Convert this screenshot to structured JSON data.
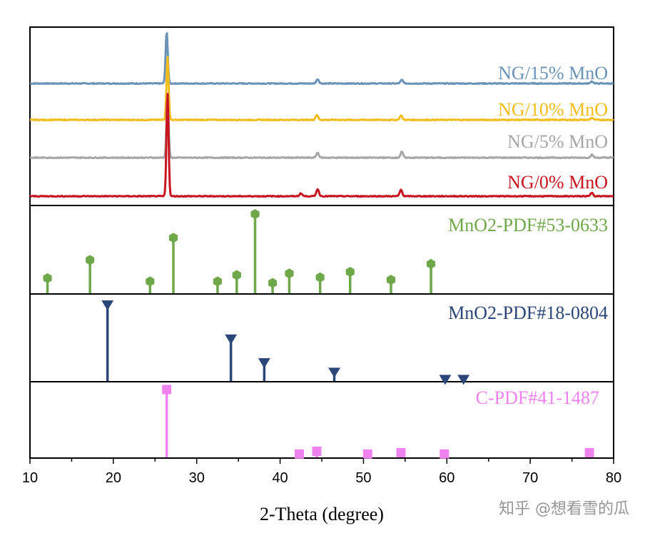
{
  "chart_data": {
    "type": "line",
    "xlabel": "2-Theta (degree)",
    "xlim": [
      10,
      80
    ],
    "x_ticks": [
      "10",
      "20",
      "30",
      "40",
      "50",
      "60",
      "70",
      "80"
    ],
    "colors": {
      "ng15": "#6a93b8",
      "ng10": "#f2bd1a",
      "ng5": "#a6a6a6",
      "ng0": "#c8141e",
      "mno2_53": "#6fa84a",
      "mno2_18": "#2b4779",
      "c_41": "#ee82ee"
    },
    "xrd_patterns": [
      {
        "key": "ng15",
        "label": "NG/15% MnO",
        "baseline": 0,
        "main_peak": {
          "x": 26.4,
          "h": 73
        },
        "minor_peaks": [
          {
            "x": 44.5,
            "h": 6
          },
          {
            "x": 54.6,
            "h": 5
          },
          {
            "x": 77.4,
            "h": 3
          }
        ]
      },
      {
        "key": "ng10",
        "label": "NG/10% MnO",
        "baseline": 0,
        "main_peak": {
          "x": 26.5,
          "h": 88
        },
        "minor_peaks": [
          {
            "x": 44.4,
            "h": 7
          },
          {
            "x": 54.5,
            "h": 6
          },
          {
            "x": 77.4,
            "h": 3
          }
        ]
      },
      {
        "key": "ng5",
        "label": "NG/5% MnO",
        "baseline": 0,
        "main_peak": {
          "x": 26.5,
          "h": 88
        },
        "minor_peaks": [
          {
            "x": 44.5,
            "h": 7
          },
          {
            "x": 54.6,
            "h": 8
          },
          {
            "x": 77.4,
            "h": 4
          }
        ]
      },
      {
        "key": "ng0",
        "label": "NG/0% MnO",
        "baseline": 0,
        "main_peak": {
          "x": 26.5,
          "h": 145
        },
        "minor_peaks": [
          {
            "x": 42.5,
            "h": 4
          },
          {
            "x": 44.5,
            "h": 10
          },
          {
            "x": 54.5,
            "h": 9
          },
          {
            "x": 77.4,
            "h": 5
          }
        ]
      }
    ],
    "reference_patterns": [
      {
        "key": "mno2_53",
        "label": "MnO2-PDF#53-0633",
        "marker": "hexagon",
        "peaks": [
          {
            "x": 12.1,
            "i": 19
          },
          {
            "x": 17.2,
            "i": 42
          },
          {
            "x": 24.4,
            "i": 15
          },
          {
            "x": 27.2,
            "i": 70
          },
          {
            "x": 32.5,
            "i": 15
          },
          {
            "x": 34.8,
            "i": 23
          },
          {
            "x": 37.0,
            "i": 100
          },
          {
            "x": 39.1,
            "i": 13
          },
          {
            "x": 41.1,
            "i": 25
          },
          {
            "x": 44.8,
            "i": 20
          },
          {
            "x": 48.4,
            "i": 27
          },
          {
            "x": 53.3,
            "i": 17
          },
          {
            "x": 58.1,
            "i": 37
          }
        ]
      },
      {
        "key": "mno2_18",
        "label": "MnO2-PDF#18-0804",
        "marker": "triangle-down",
        "peaks": [
          {
            "x": 19.3,
            "i": 100
          },
          {
            "x": 34.1,
            "i": 57
          },
          {
            "x": 38.1,
            "i": 27
          },
          {
            "x": 46.5,
            "i": 15
          },
          {
            "x": 59.8,
            "i": 6
          },
          {
            "x": 62.0,
            "i": 6
          }
        ]
      },
      {
        "key": "c_41",
        "label": "C-PDF#41-1487",
        "marker": "square",
        "peaks": [
          {
            "x": 26.4,
            "i": 100
          },
          {
            "x": 42.3,
            "i": 5
          },
          {
            "x": 44.4,
            "i": 9
          },
          {
            "x": 50.5,
            "i": 5
          },
          {
            "x": 54.5,
            "i": 7
          },
          {
            "x": 59.7,
            "i": 5
          },
          {
            "x": 77.1,
            "i": 7
          }
        ]
      }
    ]
  },
  "watermark": "知乎 @想看雪的瓜"
}
